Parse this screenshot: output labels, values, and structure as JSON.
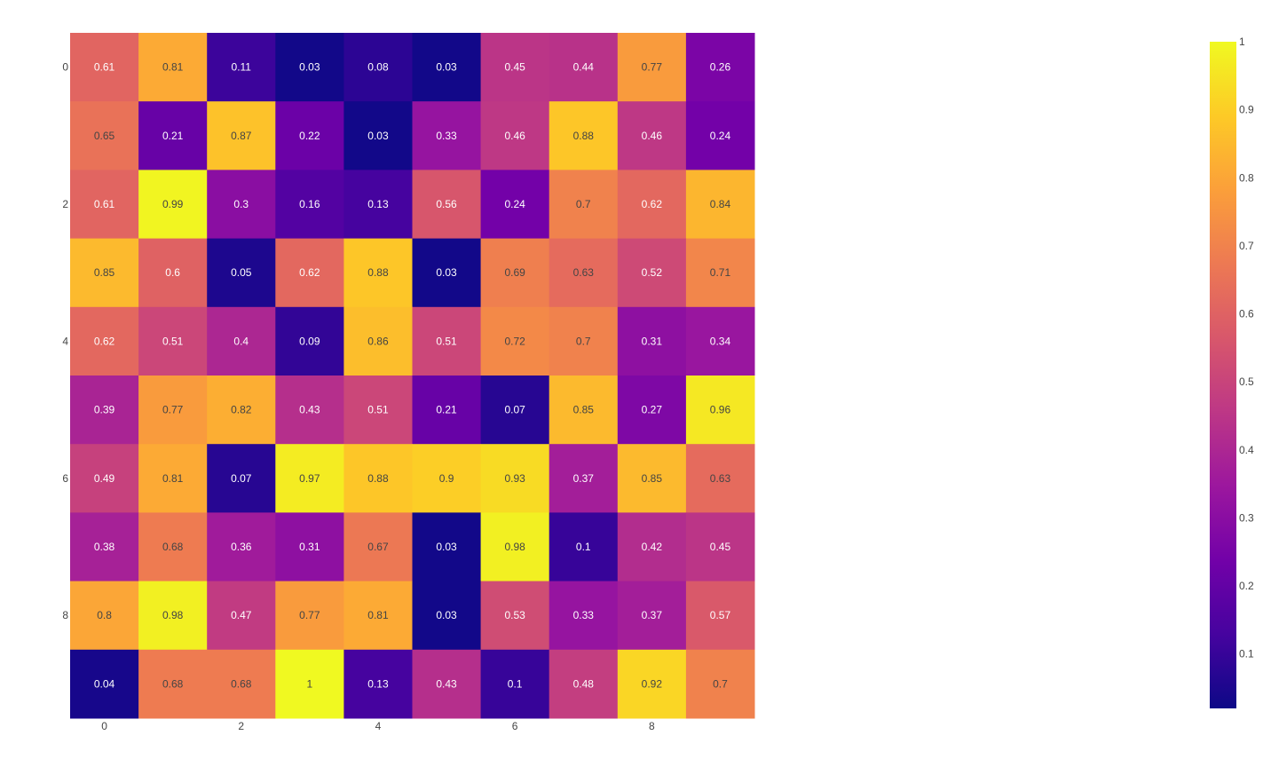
{
  "chart_data": {
    "type": "heatmap",
    "x": [
      0,
      1,
      2,
      3,
      4,
      5,
      6,
      7,
      8,
      9
    ],
    "y": [
      0,
      1,
      2,
      3,
      4,
      5,
      6,
      7,
      8,
      9
    ],
    "x_ticks": [
      "0",
      "2",
      "4",
      "6",
      "8"
    ],
    "y_ticks": [
      "0",
      "2",
      "4",
      "6",
      "8"
    ],
    "z": [
      [
        0.61,
        0.81,
        0.11,
        0.03,
        0.08,
        0.03,
        0.45,
        0.44,
        0.77,
        0.26
      ],
      [
        0.65,
        0.21,
        0.87,
        0.22,
        0.03,
        0.33,
        0.46,
        0.88,
        0.46,
        0.24
      ],
      [
        0.61,
        0.99,
        0.3,
        0.16,
        0.13,
        0.56,
        0.24,
        0.7,
        0.62,
        0.84
      ],
      [
        0.85,
        0.6,
        0.05,
        0.62,
        0.88,
        0.03,
        0.69,
        0.63,
        0.52,
        0.71
      ],
      [
        0.62,
        0.51,
        0.4,
        0.09,
        0.86,
        0.51,
        0.72,
        0.7,
        0.31,
        0.34
      ],
      [
        0.39,
        0.77,
        0.82,
        0.43,
        0.51,
        0.21,
        0.07,
        0.85,
        0.27,
        0.96
      ],
      [
        0.49,
        0.81,
        0.07,
        0.97,
        0.88,
        0.9,
        0.93,
        0.37,
        0.85,
        0.63
      ],
      [
        0.38,
        0.68,
        0.36,
        0.31,
        0.67,
        0.03,
        0.98,
        0.1,
        0.42,
        0.45
      ],
      [
        0.8,
        0.98,
        0.47,
        0.77,
        0.81,
        0.03,
        0.53,
        0.33,
        0.37,
        0.57
      ],
      [
        0.04,
        0.68,
        0.68,
        1,
        0.13,
        0.43,
        0.1,
        0.48,
        0.92,
        0.7
      ]
    ],
    "zlim": [
      0.02,
      1
    ],
    "colorscale": "Plasma",
    "colorscale_stops": [
      "#0d0887",
      "#46039f",
      "#7201a8",
      "#9c179e",
      "#bd3786",
      "#d8576b",
      "#ed7953",
      "#fb9f3a",
      "#fdca26",
      "#f0f921"
    ],
    "colorbar_ticks": [
      "0.1",
      "0.2",
      "0.3",
      "0.4",
      "0.5",
      "0.6",
      "0.7",
      "0.8",
      "0.9",
      "1"
    ],
    "colorbar_tick_values": [
      0.1,
      0.2,
      0.3,
      0.4,
      0.5,
      0.6,
      0.7,
      0.8,
      0.9,
      1
    ],
    "text_colors": {
      "dark": "#444444",
      "light": "#ffffff"
    },
    "axis_text_color": "#444444",
    "grid": false,
    "legend": "colorbar-right"
  }
}
